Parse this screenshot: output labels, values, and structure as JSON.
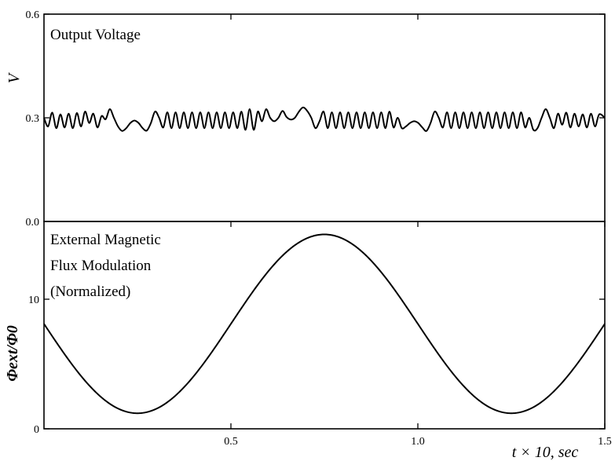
{
  "chart_data": [
    {
      "type": "line",
      "panel": "top",
      "title": "Output Voltage",
      "ylabel": "V",
      "xlim": [
        0,
        1.5
      ],
      "ylim": [
        0.0,
        0.6
      ],
      "yticks": [
        {
          "value": 0.0,
          "label": "0.0"
        },
        {
          "value": 0.3,
          "label": "0.3"
        },
        {
          "value": 0.6,
          "label": "0.6"
        }
      ],
      "color": "#000000",
      "series": [
        {
          "x": [
            0.0,
            0.011,
            0.022,
            0.033,
            0.044,
            0.055,
            0.066,
            0.077,
            0.088,
            0.099,
            0.11,
            0.121,
            0.132,
            0.143,
            0.154,
            0.165,
            0.176,
            0.187,
            0.198,
            0.209,
            0.22,
            0.231,
            0.242,
            0.253,
            0.264,
            0.275,
            0.286,
            0.297,
            0.308,
            0.319,
            0.33,
            0.341,
            0.352,
            0.363,
            0.374,
            0.385,
            0.396,
            0.407,
            0.418,
            0.429,
            0.44,
            0.451,
            0.462,
            0.473,
            0.484,
            0.495,
            0.506,
            0.517,
            0.528,
            0.539,
            0.55,
            0.561,
            0.572,
            0.583,
            0.594,
            0.605,
            0.616,
            0.627,
            0.638,
            0.649,
            0.66,
            0.671,
            0.682,
            0.693,
            0.704,
            0.715,
            0.726,
            0.737,
            0.748,
            0.759,
            0.77,
            0.781,
            0.792,
            0.803,
            0.814,
            0.825,
            0.836,
            0.847,
            0.858,
            0.869,
            0.88,
            0.891,
            0.902,
            0.913,
            0.924,
            0.935,
            0.946,
            0.957,
            0.968,
            0.979,
            0.99,
            1.001,
            1.012,
            1.023,
            1.034,
            1.045,
            1.056,
            1.067,
            1.078,
            1.089,
            1.1,
            1.111,
            1.122,
            1.133,
            1.144,
            1.155,
            1.166,
            1.177,
            1.188,
            1.199,
            1.21,
            1.221,
            1.232,
            1.243,
            1.254,
            1.265,
            1.276,
            1.287,
            1.298,
            1.309,
            1.32,
            1.331,
            1.342,
            1.353,
            1.364,
            1.375,
            1.386,
            1.397,
            1.408,
            1.419,
            1.43,
            1.441,
            1.452,
            1.463,
            1.474,
            1.485,
            1.5
          ],
          "y": [
            0.3,
            0.275,
            0.315,
            0.27,
            0.31,
            0.272,
            0.312,
            0.27,
            0.314,
            0.275,
            0.318,
            0.285,
            0.312,
            0.272,
            0.305,
            0.296,
            0.325,
            0.3,
            0.275,
            0.262,
            0.27,
            0.285,
            0.292,
            0.285,
            0.27,
            0.263,
            0.285,
            0.318,
            0.3,
            0.272,
            0.316,
            0.27,
            0.316,
            0.27,
            0.316,
            0.27,
            0.316,
            0.27,
            0.316,
            0.27,
            0.316,
            0.27,
            0.316,
            0.27,
            0.316,
            0.27,
            0.316,
            0.27,
            0.318,
            0.265,
            0.325,
            0.265,
            0.318,
            0.29,
            0.325,
            0.3,
            0.29,
            0.3,
            0.32,
            0.302,
            0.295,
            0.3,
            0.318,
            0.33,
            0.32,
            0.3,
            0.27,
            0.29,
            0.318,
            0.27,
            0.316,
            0.27,
            0.316,
            0.27,
            0.316,
            0.27,
            0.316,
            0.27,
            0.316,
            0.27,
            0.316,
            0.27,
            0.316,
            0.27,
            0.318,
            0.272,
            0.3,
            0.27,
            0.275,
            0.285,
            0.29,
            0.285,
            0.272,
            0.262,
            0.285,
            0.318,
            0.3,
            0.272,
            0.316,
            0.27,
            0.316,
            0.27,
            0.316,
            0.27,
            0.316,
            0.27,
            0.316,
            0.27,
            0.316,
            0.27,
            0.316,
            0.27,
            0.316,
            0.27,
            0.316,
            0.27,
            0.316,
            0.272,
            0.3,
            0.265,
            0.27,
            0.3,
            0.325,
            0.3,
            0.27,
            0.312,
            0.28,
            0.315,
            0.272,
            0.312,
            0.275,
            0.31,
            0.272,
            0.312,
            0.275,
            0.31,
            0.3
          ]
        }
      ]
    },
    {
      "type": "line",
      "panel": "bottom",
      "title_lines": [
        "External Magnetic",
        "Flux Modulation",
        "(Normalized)"
      ],
      "ylabel": "Φext/Φ0",
      "xlabel": "t × 10, sec",
      "xlim": [
        0,
        1.5
      ],
      "ylim": [
        0,
        16
      ],
      "xticks": [
        {
          "value": 0.5,
          "label": "0.5"
        },
        {
          "value": 1.0,
          "label": "1.0"
        },
        {
          "value": 1.5,
          "label": "1.5"
        }
      ],
      "yticks": [
        {
          "value": 0,
          "label": "0"
        },
        {
          "value": 10,
          "label": "10"
        }
      ],
      "color": "#000000",
      "series": [
        {
          "function": "cosine",
          "center": 8.1,
          "amplitude": 6.9,
          "period": 1.0,
          "minimum_at": 0.25
        }
      ]
    }
  ]
}
